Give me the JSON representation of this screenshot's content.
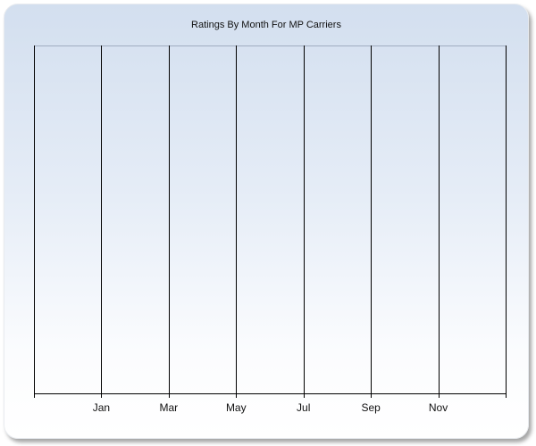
{
  "chart_data": {
    "type": "line",
    "title": "Ratings By Month For MP Carriers",
    "xlabel": "",
    "ylabel": "",
    "x_tick_labels": [
      "Jan",
      "Mar",
      "May",
      "Jul",
      "Sep",
      "Nov"
    ],
    "x_tick_months": [
      1,
      3,
      5,
      7,
      9,
      11
    ],
    "xlim": [
      -1,
      13
    ],
    "grid": {
      "vertical": true,
      "horizontal": false
    },
    "series": [],
    "colors": {
      "background_top": "#d3dfef",
      "background_bottom": "#ffffff",
      "gridline": "#000000"
    }
  }
}
